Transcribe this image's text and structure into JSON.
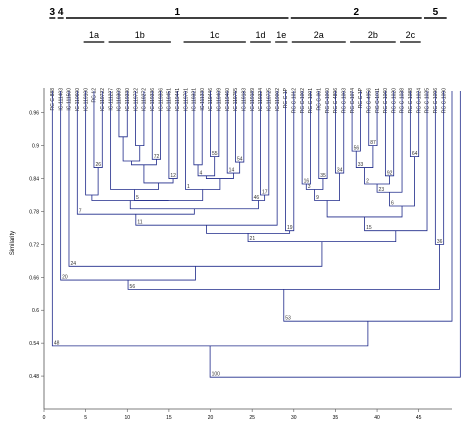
{
  "chart_data": {
    "type": "dendrogram",
    "ylabel": "Similarity",
    "yticks": [
      "0.96",
      "0.9",
      "0.84",
      "0.78",
      "0.72",
      "0.66",
      "0.6",
      "0.54",
      "0.48"
    ],
    "ytick_values": [
      0.96,
      0.9,
      0.84,
      0.78,
      0.72,
      0.66,
      0.6,
      0.54,
      0.48
    ],
    "xticks": [
      "0",
      "5",
      "10",
      "15",
      "20",
      "25",
      "30",
      "35",
      "40",
      "45"
    ],
    "xtick_values": [
      0,
      5,
      10,
      15,
      20,
      25,
      30,
      35,
      40,
      45
    ],
    "xlim": [
      0,
      49
    ],
    "ylim": [
      0.42,
      1.005
    ],
    "groups": [
      {
        "label": "3",
        "from": 1,
        "to": 1
      },
      {
        "label": "4",
        "from": 2,
        "to": 2
      },
      {
        "label": "1",
        "from": 3,
        "to": 29
      },
      {
        "label": "2",
        "from": 30,
        "to": 45
      },
      {
        "label": "5",
        "from": 46,
        "to": 48
      }
    ],
    "subgroups": [
      {
        "label": "1a",
        "from": 5,
        "to": 7
      },
      {
        "label": "1b",
        "from": 8,
        "to": 15
      },
      {
        "label": "1c",
        "from": 17,
        "to": 24
      },
      {
        "label": "1d",
        "from": 25,
        "to": 27
      },
      {
        "label": "1e",
        "from": 28,
        "to": 29
      },
      {
        "label": "2a",
        "from": 30,
        "to": 36
      },
      {
        "label": "2b",
        "from": 37,
        "to": 42
      },
      {
        "label": "2c",
        "from": 43,
        "to": 45
      }
    ],
    "leaves": [
      "RG C-888",
      "IC-111403",
      "IC-111500",
      "IC-110600",
      "IC-119100",
      "RG 12",
      "IC-119722",
      "IC-111227",
      "IC-119309",
      "IC-119330",
      "IC-119722",
      "IC-119272",
      "IC-119336",
      "IC-119336",
      "IC-119451",
      "IC-119441",
      "IC-119701",
      "IC-119321",
      "IC-111330",
      "IC-119446",
      "IC-119409",
      "IC-119460",
      "IC-119755",
      "IC-119183",
      "IC-119189",
      "IC-119324",
      "IC-119725",
      "IC-119002",
      "RG C-1P",
      "RG C-1012",
      "RG C-1002",
      "RG C-1001",
      "RG C-001",
      "RG C-1060",
      "RG C-4896",
      "RG C-1003",
      "RG C-1074",
      "RG C-1P",
      "RG C-4956",
      "RG C-1011",
      "RG C-1060",
      "RG C-1020",
      "RG C-1038",
      "RG C-1088",
      "RG C-1024",
      "RG C-1025",
      "RG C-1096",
      "RG C-1090"
    ],
    "merges": [
      {
        "a": 9,
        "b": 10,
        "h": 0.916,
        "label": ""
      },
      {
        "a": 11,
        "b": 12,
        "h": 0.9,
        "label": ""
      },
      {
        "a": 13,
        "b": 14,
        "h": 0.875,
        "label": "72"
      },
      {
        "a": "M1",
        "b": "M2",
        "h": 0.872,
        "label": ""
      },
      {
        "a": "M4",
        "b": "M3",
        "h": 0.865,
        "label": ""
      },
      {
        "a": 6,
        "b": 7,
        "h": 0.86,
        "label": "26"
      },
      {
        "a": 15,
        "b": 16,
        "h": 0.84,
        "label": "12"
      },
      {
        "a": "M5",
        "b": "M7",
        "h": 0.832,
        "label": ""
      },
      {
        "a": "M8",
        "b": 8,
        "h": 0.82,
        "label": ""
      },
      {
        "a": 5,
        "b": "M6",
        "h": 0.81,
        "label": ""
      },
      {
        "a": 20,
        "b": 21,
        "h": 0.88,
        "label": "55"
      },
      {
        "a": 18,
        "b": 19,
        "h": 0.865,
        "label": ""
      },
      {
        "a": "M11",
        "b": "M12",
        "h": 0.845,
        "label": "4"
      },
      {
        "a": 23,
        "b": 24,
        "h": 0.87,
        "label": "54"
      },
      {
        "a": 22,
        "b": "M14",
        "h": 0.85,
        "label": "14"
      },
      {
        "a": "M13",
        "b": "M15",
        "h": 0.84,
        "label": ""
      },
      {
        "a": 17,
        "b": "M16",
        "h": 0.82,
        "label": "1"
      },
      {
        "a": "M9",
        "b": "M17",
        "h": 0.8,
        "label": "5"
      },
      {
        "a": "M10",
        "b": "M18",
        "h": 0.8,
        "label": ""
      },
      {
        "a": 26,
        "b": 27,
        "h": 0.81,
        "label": "17"
      },
      {
        "a": 25,
        "b": "M20",
        "h": 0.8,
        "label": "46"
      },
      {
        "a": "M19",
        "b": "M21",
        "h": 0.785,
        "label": ""
      },
      {
        "a": 4,
        "b": "M22",
        "h": 0.775,
        "label": "7"
      },
      {
        "a": "M23",
        "b": 28,
        "h": 0.755,
        "label": "11"
      },
      {
        "a": 29,
        "b": 30,
        "h": 0.745,
        "label": "19"
      },
      {
        "a": "M24",
        "b": "M25",
        "h": 0.74,
        "label": ""
      },
      {
        "a": 31,
        "b": 32,
        "h": 0.83,
        "label": "16"
      },
      {
        "a": 33,
        "b": 34,
        "h": 0.84,
        "label": "35"
      },
      {
        "a": "M27",
        "b": "M28",
        "h": 0.82,
        "label": "3"
      },
      {
        "a": 35,
        "b": 36,
        "h": 0.85,
        "label": "34"
      },
      {
        "a": "M29",
        "b": "M30",
        "h": 0.8,
        "label": "9"
      },
      {
        "a": 37,
        "b": 38,
        "h": 0.89,
        "label": "56"
      },
      {
        "a": 39,
        "b": 40,
        "h": 0.9,
        "label": "87"
      },
      {
        "a": "M32",
        "b": "M33",
        "h": 0.86,
        "label": "33"
      },
      {
        "a": 41,
        "b": 42,
        "h": 0.845,
        "label": "92"
      },
      {
        "a": "M34",
        "b": "M35",
        "h": 0.83,
        "label": "2"
      },
      {
        "a": "M36",
        "b": 43,
        "h": 0.815,
        "label": "23"
      },
      {
        "a": 44,
        "b": 45,
        "h": 0.88,
        "label": "64"
      },
      {
        "a": "M37",
        "b": "M38",
        "h": 0.79,
        "label": "6"
      },
      {
        "a": "M31",
        "b": "M39",
        "h": 0.77,
        "label": ""
      },
      {
        "a": "M40",
        "b": 46,
        "h": 0.745,
        "label": "15"
      },
      {
        "a": "M26",
        "b": "M41",
        "h": 0.725,
        "label": "21"
      },
      {
        "a": 3,
        "b": "M42",
        "h": 0.68,
        "label": "24"
      },
      {
        "a": 2,
        "b": "M43",
        "h": 0.655,
        "label": "20"
      },
      {
        "a": 47,
        "b": 48,
        "h": 0.72,
        "label": "36"
      },
      {
        "a": "M44",
        "b": "M45",
        "h": 0.638,
        "label": "56"
      },
      {
        "a": "M46",
        "b": 49,
        "h": 0.58,
        "label": "53"
      },
      {
        "a": 1,
        "b": "M47",
        "h": 0.535,
        "label": "48"
      },
      {
        "a": "M48",
        "b": 50,
        "h": 0.478,
        "label": "100"
      }
    ]
  }
}
